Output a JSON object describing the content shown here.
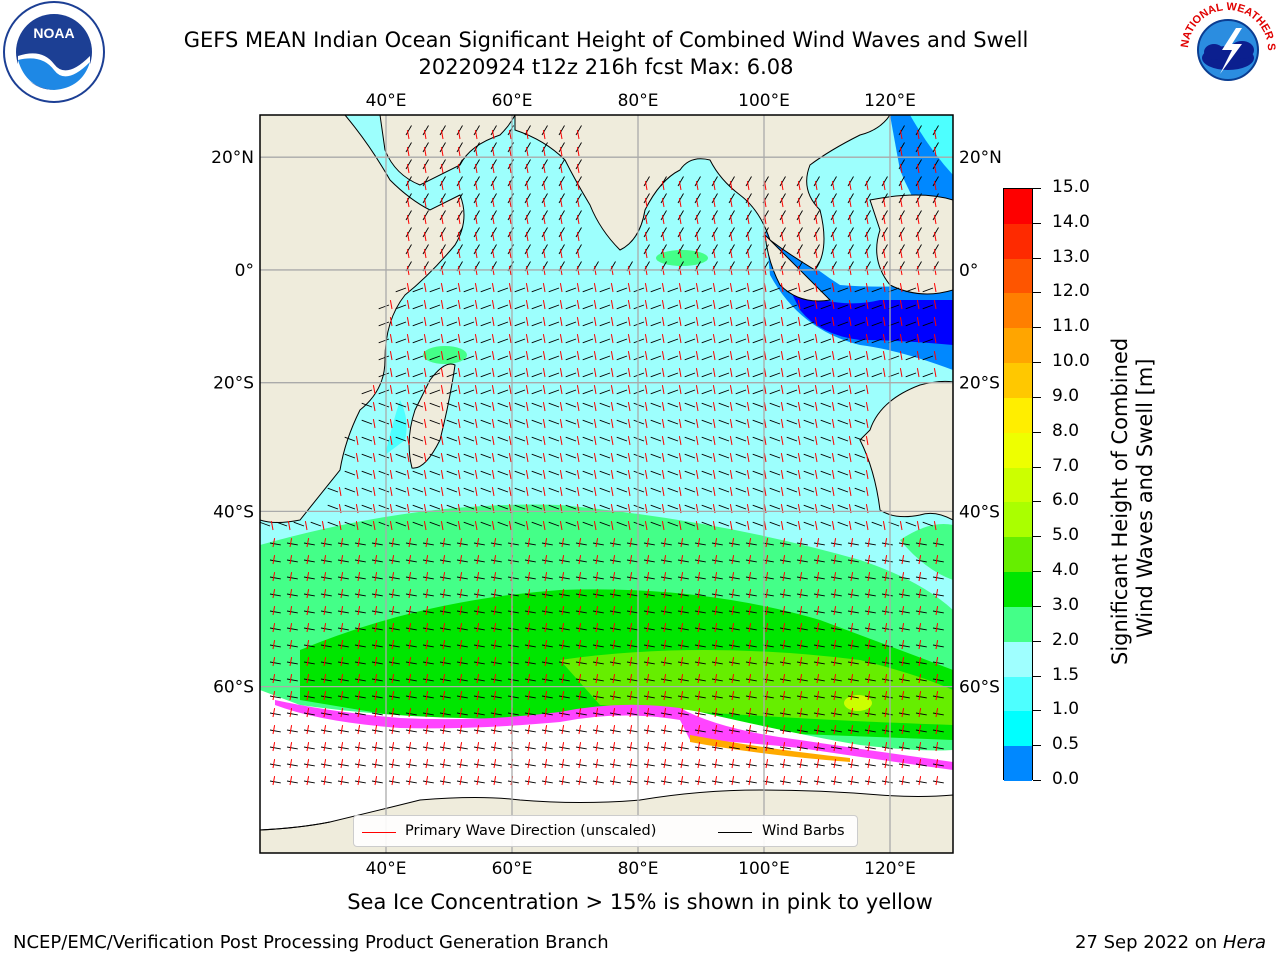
{
  "header": {
    "title_line1": "GEFS MEAN Indian Ocean Significant Height of Combined Wind Waves and Swell",
    "title_line2": "20220924 t12z 216h fcst   Max: 6.08"
  },
  "logos": {
    "left": "noaa-logo",
    "left_text": "NOAA",
    "right": "nws-logo",
    "right_text": "NATIONAL WEATHER SERVICE"
  },
  "map": {
    "lon_range": [
      20,
      130
    ],
    "lat_range": [
      -72,
      27
    ],
    "lon_ticks": [
      "40°E",
      "60°E",
      "80°E",
      "100°E",
      "120°E"
    ],
    "lat_ticks": [
      "20°N",
      "0°",
      "20°S",
      "40°S",
      "60°S"
    ],
    "grid": true,
    "land_color": "#efecdc",
    "ocean_base_color": "#9dfffd"
  },
  "colorbar": {
    "levels": [
      "15.0",
      "14.0",
      "13.0",
      "12.0",
      "11.0",
      "10.0",
      "9.0",
      "8.0",
      "7.0",
      "6.0",
      "5.0",
      "4.0",
      "3.0",
      "2.0",
      "1.5",
      "1.0",
      "0.5",
      "0.0"
    ],
    "colors": [
      "#fe0000",
      "#fe2a00",
      "#fe5500",
      "#ff7f00",
      "#ffa500",
      "#ffc800",
      "#ffee00",
      "#eeff00",
      "#ccff00",
      "#aaff00",
      "#66ee00",
      "#00e600",
      "#44ff88",
      "#9fffff",
      "#4dffff",
      "#00ffff",
      "#0088ff",
      "#0000ff"
    ],
    "title_line1": "Significant Height of Combined",
    "title_line2": "Wind Waves and Swell [m]"
  },
  "legend": {
    "wave_label": "Primary Wave Direction (unscaled)",
    "wave_color": "#ff0000",
    "barb_label": "Wind Barbs",
    "barb_color": "#000000"
  },
  "bottom_note": "Sea Ice Concentration > 15% is shown in pink to yellow",
  "footer": {
    "left": "NCEP/EMC/Verification Post Processing Product Generation Branch",
    "right_prefix": "27 Sep 2022 on ",
    "right_host": "Hera"
  }
}
